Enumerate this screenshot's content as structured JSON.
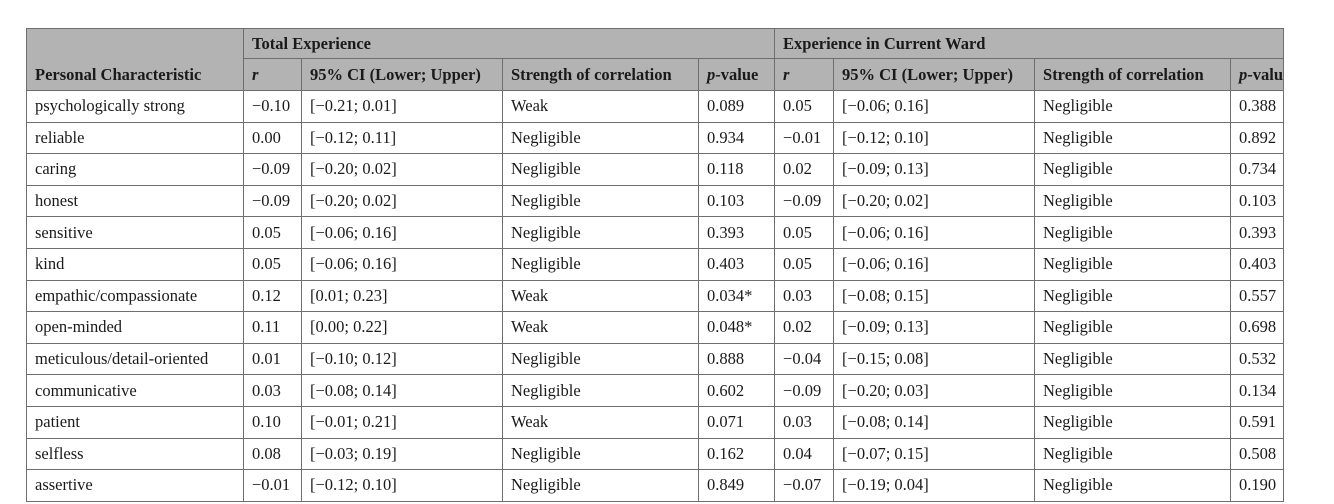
{
  "table": {
    "group_headers": {
      "total": "Total Experience",
      "current": "Experience in Current Ward"
    },
    "row_header": "Personal Characteristic",
    "columns": {
      "r": "r",
      "ci": "95% CI (Lower; Upper)",
      "strength": "Strength of correlation",
      "p_italic": "p",
      "p_suffix": "-value"
    },
    "rows": [
      {
        "trait": "psychologically strong",
        "t_r": "−0.10",
        "t_ci": "[−0.21; 0.01]",
        "t_s": "Weak",
        "t_p": "0.089",
        "c_r": "0.05",
        "c_ci": "[−0.06; 0.16]",
        "c_s": "Negligible",
        "c_p": "0.388"
      },
      {
        "trait": "reliable",
        "t_r": "0.00",
        "t_ci": "[−0.12; 0.11]",
        "t_s": "Negligible",
        "t_p": "0.934",
        "c_r": "−0.01",
        "c_ci": "[−0.12; 0.10]",
        "c_s": "Negligible",
        "c_p": "0.892"
      },
      {
        "trait": "caring",
        "t_r": "−0.09",
        "t_ci": "[−0.20; 0.02]",
        "t_s": "Negligible",
        "t_p": "0.118",
        "c_r": "0.02",
        "c_ci": "[−0.09; 0.13]",
        "c_s": "Negligible",
        "c_p": "0.734"
      },
      {
        "trait": "honest",
        "t_r": "−0.09",
        "t_ci": "[−0.20; 0.02]",
        "t_s": "Negligible",
        "t_p": "0.103",
        "c_r": "−0.09",
        "c_ci": "[−0.20; 0.02]",
        "c_s": "Negligible",
        "c_p": "0.103"
      },
      {
        "trait": "sensitive",
        "t_r": "0.05",
        "t_ci": "[−0.06; 0.16]",
        "t_s": "Negligible",
        "t_p": "0.393",
        "c_r": "0.05",
        "c_ci": "[−0.06; 0.16]",
        "c_s": "Negligible",
        "c_p": "0.393"
      },
      {
        "trait": "kind",
        "t_r": "0.05",
        "t_ci": "[−0.06; 0.16]",
        "t_s": "Negligible",
        "t_p": "0.403",
        "c_r": "0.05",
        "c_ci": "[−0.06; 0.16]",
        "c_s": "Negligible",
        "c_p": "0.403"
      },
      {
        "trait": "empathic/compassionate",
        "t_r": "0.12",
        "t_r_bold": true,
        "t_ci": "[0.01; 0.23]",
        "t_s": "Weak",
        "t_p": "0.034*",
        "t_p_bold": true,
        "c_r": "0.03",
        "c_ci": "[−0.08; 0.15]",
        "c_s": "Negligible",
        "c_p": "0.557"
      },
      {
        "trait": "open-minded",
        "t_r": "0.11",
        "t_r_bold": true,
        "t_ci": "[0.00; 0.22]",
        "t_s": "Weak",
        "t_p": "0.048*",
        "t_p_bold": true,
        "c_r": "0.02",
        "c_ci": "[−0.09; 0.13]",
        "c_s": "Negligible",
        "c_p": "0.698"
      },
      {
        "trait": "meticulous/detail-oriented",
        "t_r": "0.01",
        "t_ci": "[−0.10; 0.12]",
        "t_s": "Negligible",
        "t_p": "0.888",
        "c_r": "−0.04",
        "c_ci": "[−0.15; 0.08]",
        "c_s": "Negligible",
        "c_p": "0.532"
      },
      {
        "trait": "communicative",
        "t_r": "0.03",
        "t_ci": "[−0.08; 0.14]",
        "t_s": "Negligible",
        "t_p": "0.602",
        "c_r": "−0.09",
        "c_ci": "[−0.20; 0.03]",
        "c_s": "Negligible",
        "c_p": "0.134"
      },
      {
        "trait": "patient",
        "t_r": "0.10",
        "t_ci": "[−0.01; 0.21]",
        "t_s": "Weak",
        "t_p": "0.071",
        "c_r": "0.03",
        "c_ci": "[−0.08; 0.14]",
        "c_s": "Negligible",
        "c_p": "0.591"
      },
      {
        "trait": "selfless",
        "t_r": "0.08",
        "t_ci": "[−0.03; 0.19]",
        "t_s": "Negligible",
        "t_p": "0.162",
        "c_r": "0.04",
        "c_ci": "[−0.07; 0.15]",
        "c_s": "Negligible",
        "c_p": "0.508"
      },
      {
        "trait": "assertive",
        "t_r": "−0.01",
        "t_ci": "[−0.12; 0.10]",
        "t_s": "Negligible",
        "t_p": "0.849",
        "c_r": "−0.07",
        "c_ci": "[−0.19; 0.04]",
        "c_s": "Negligible",
        "c_p": "0.190"
      }
    ]
  }
}
